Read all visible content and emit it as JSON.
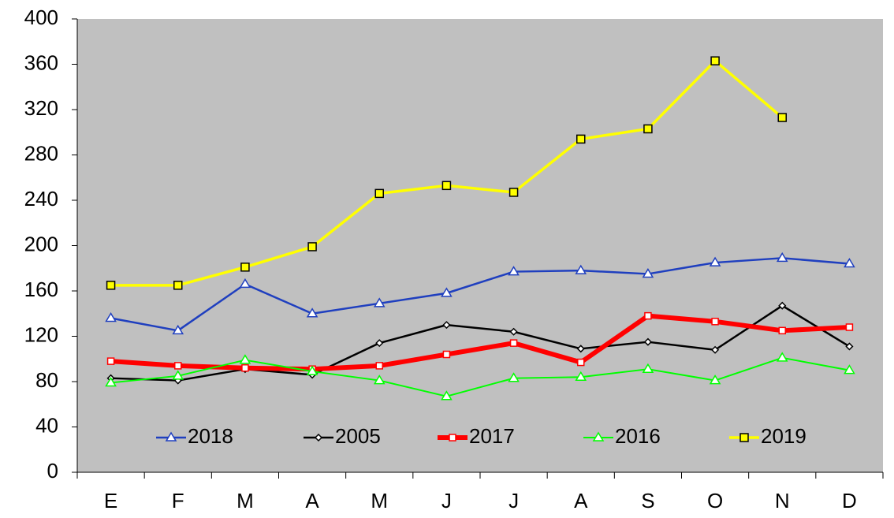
{
  "chart_data": {
    "type": "line",
    "categories": [
      "E",
      "F",
      "M",
      "A",
      "M",
      "J",
      "J",
      "A",
      "S",
      "O",
      "N",
      "D"
    ],
    "series": [
      {
        "name": "2018",
        "color": "#1f3fbf",
        "marker": "triangle",
        "values": [
          136,
          125,
          166,
          140,
          149,
          158,
          177,
          178,
          175,
          185,
          189,
          184
        ]
      },
      {
        "name": "2005",
        "color": "#000000",
        "marker": "diamond",
        "values": [
          83,
          81,
          91,
          86,
          114,
          130,
          124,
          109,
          115,
          108,
          147,
          111
        ]
      },
      {
        "name": "2017",
        "color": "#ff0000",
        "marker": "square",
        "values": [
          98,
          94,
          92,
          91,
          94,
          104,
          114,
          97,
          138,
          133,
          125,
          128
        ]
      },
      {
        "name": "2016",
        "color": "#00ff00",
        "marker": "triangle",
        "values": [
          79,
          85,
          99,
          89,
          81,
          67,
          83,
          84,
          91,
          81,
          101,
          90
        ]
      },
      {
        "name": "2019",
        "color": "#ffff00",
        "marker": "square",
        "values": [
          165,
          165,
          181,
          199,
          246,
          253,
          247,
          294,
          303,
          363,
          313,
          null
        ]
      }
    ],
    "ylim": [
      0,
      400
    ],
    "yticks": [
      0,
      40,
      80,
      120,
      160,
      200,
      240,
      280,
      320,
      360,
      400
    ],
    "legend": "bottom",
    "plot_background": "#c0c0c0"
  }
}
